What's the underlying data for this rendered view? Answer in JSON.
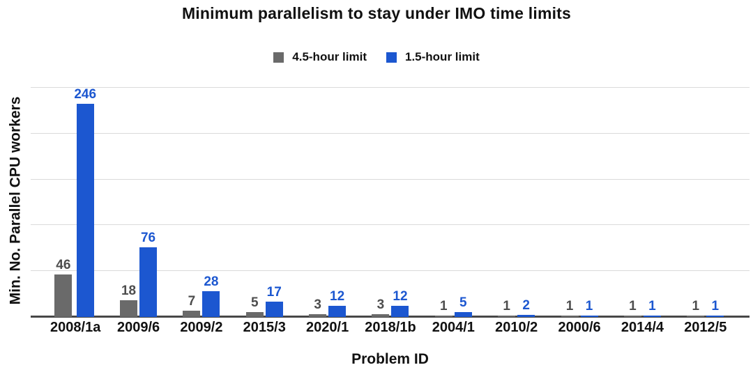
{
  "chart": {
    "title": "Minimum parallelism to stay under IMO time limits",
    "legend": {
      "items": [
        {
          "label": "4.5-hour limit",
          "color": "#6a6a6a"
        },
        {
          "label": "1.5-hour limit",
          "color": "#1c57d0"
        }
      ]
    },
    "xlabel": "Problem ID",
    "ylabel": "Min. No. Parallel CPU workers"
  },
  "chart_data": {
    "type": "bar",
    "title": "Minimum parallelism to stay under IMO time limits",
    "xlabel": "Problem ID",
    "ylabel": "Min. No. Parallel CPU workers",
    "categories": [
      "2008/1a",
      "2009/6",
      "2009/2",
      "2015/3",
      "2020/1",
      "2018/1b",
      "2004/1",
      "2010/2",
      "2000/6",
      "2014/4",
      "2012/5"
    ],
    "series": [
      {
        "name": "4.5-hour limit",
        "color": "#6a6a6a",
        "label_color": "#4d4d4d",
        "values": [
          46,
          18,
          7,
          5,
          3,
          3,
          1,
          1,
          1,
          1,
          1
        ]
      },
      {
        "name": "1.5-hour limit",
        "color": "#1c57d0",
        "label_color": "#1c57d0",
        "values": [
          246,
          76,
          28,
          17,
          12,
          12,
          5,
          2,
          1,
          1,
          1
        ]
      }
    ],
    "ylim": [
      0,
      250
    ],
    "gridline_step": 50,
    "grid": true,
    "legend_position": "top",
    "data_labels": true
  },
  "style": {
    "grid_color": "#dadada",
    "axis_line_color": "#474747",
    "text_color": "#111111"
  }
}
